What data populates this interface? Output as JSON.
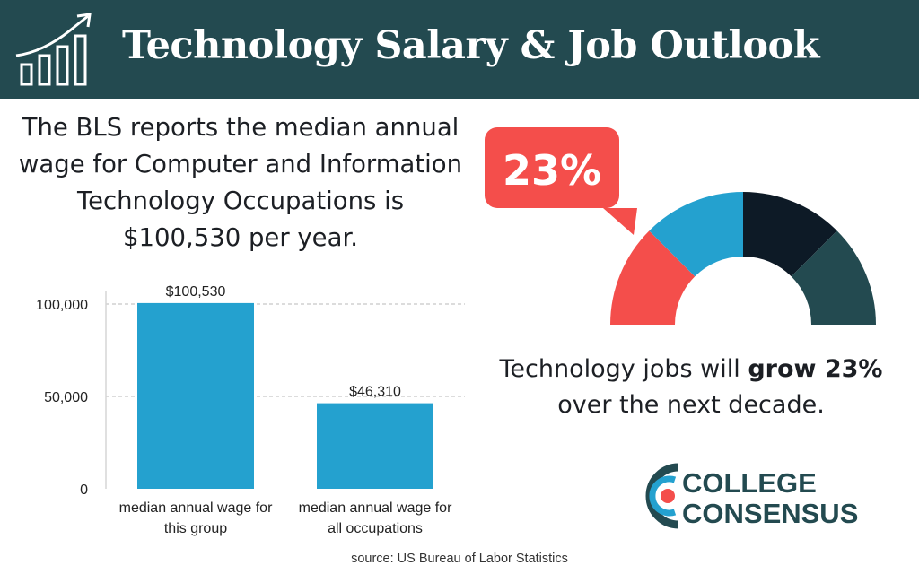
{
  "header": {
    "title": "Technology Salary & Job Outlook",
    "icon": "growth-chart-icon",
    "background": "#234a50"
  },
  "intro": {
    "lines": [
      "The BLS reports the median annual",
      "wage for Computer and Information",
      "Technology Occupations is",
      "$100,530  per year."
    ]
  },
  "chart_data": [
    {
      "type": "bar",
      "categories": [
        [
          "median annual wage for",
          "this group"
        ],
        [
          "median annual wage for",
          "all occupations"
        ]
      ],
      "values": [
        100530,
        46310
      ],
      "data_labels": [
        "$100,530",
        "$46,310"
      ],
      "title": "",
      "xlabel": "",
      "ylabel": "",
      "ylim": [
        0,
        100000
      ],
      "yticks": [
        0,
        50000,
        100000
      ],
      "ytick_labels": [
        "0",
        "50,000",
        "100,000"
      ],
      "grid": true,
      "bar_color": "#24a1cf"
    },
    {
      "type": "pie",
      "title": "",
      "callout": "23%",
      "callout_color": "#f44e4b",
      "segments": [
        {
          "value": 20,
          "color": "#f44e4b"
        },
        {
          "value": 20,
          "color": "#24a1cf"
        },
        {
          "value": 20,
          "color": "#0d1a26"
        },
        {
          "value": 20,
          "color": "#234a50"
        }
      ]
    }
  ],
  "growth": {
    "line1_pre": "Technology jobs will ",
    "line1_bold": "grow 23%",
    "line2": "over the next decade."
  },
  "logo": {
    "line1": "COLLEGE",
    "line2": "CONSENSUS",
    "icon": "college-consensus-c-icon",
    "colors": [
      "#234a50",
      "#24a1cf",
      "#f44e4b"
    ]
  },
  "source": "source: US Bureau of Labor Statistics"
}
